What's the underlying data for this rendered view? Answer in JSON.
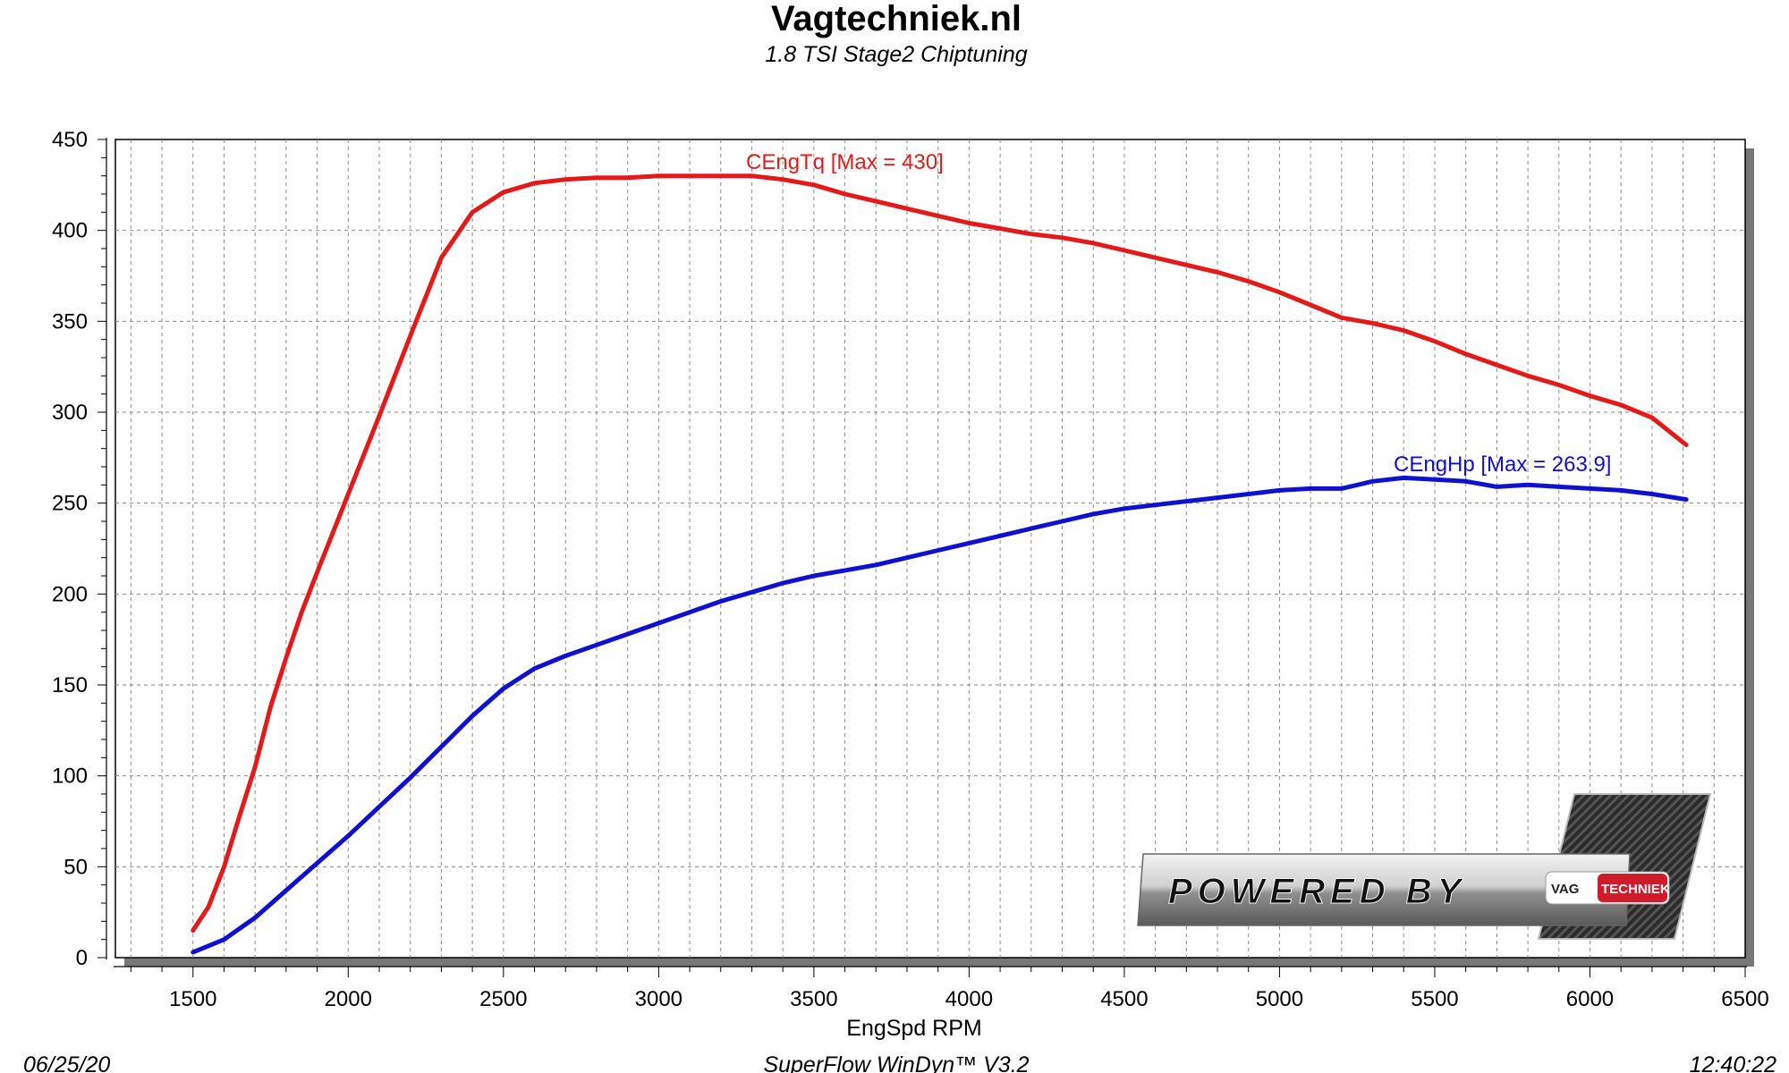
{
  "chart_data": {
    "type": "line",
    "title": "Vagtechniek.nl",
    "subtitle": "1.8 TSI Stage2 Chiptuning",
    "xlabel": "EngSpd RPM",
    "ylabel": "",
    "xlim": [
      1250,
      6500
    ],
    "ylim": [
      0,
      450
    ],
    "xticks": [
      1500,
      2000,
      2500,
      3000,
      3500,
      4000,
      4500,
      5000,
      5500,
      6000,
      6500
    ],
    "yticks": [
      0,
      50,
      100,
      150,
      200,
      250,
      300,
      350,
      400,
      450
    ],
    "grid": true,
    "colors": {
      "torque": "#e41a1a",
      "power": "#1010d0"
    },
    "series": [
      {
        "name": "CEngTq",
        "label": "CEngTq [Max = 430]",
        "color": "#e41a1a",
        "x": [
          1500,
          1550,
          1600,
          1650,
          1700,
          1750,
          1800,
          1850,
          1900,
          2000,
          2100,
          2200,
          2300,
          2400,
          2500,
          2600,
          2700,
          2800,
          2900,
          3000,
          3100,
          3200,
          3300,
          3400,
          3500,
          3600,
          3700,
          3800,
          3900,
          4000,
          4100,
          4200,
          4300,
          4400,
          4500,
          4600,
          4700,
          4800,
          4900,
          5000,
          5100,
          5200,
          5300,
          5400,
          5500,
          5600,
          5700,
          5800,
          5900,
          6000,
          6100,
          6200,
          6310
        ],
        "y": [
          15,
          28,
          50,
          78,
          105,
          138,
          165,
          190,
          212,
          255,
          298,
          342,
          385,
          410,
          421,
          426,
          428,
          429,
          429,
          430,
          430,
          430,
          430,
          428,
          425,
          420,
          416,
          412,
          408,
          404,
          401,
          398,
          396,
          393,
          389,
          385,
          381,
          377,
          372,
          366,
          359,
          352,
          349,
          345,
          339,
          332,
          326,
          320,
          315,
          309,
          304,
          297,
          282
        ]
      },
      {
        "name": "CEngHp",
        "label": "CEngHp [Max = 263.9]",
        "color": "#1010d0",
        "x": [
          1500,
          1600,
          1700,
          1800,
          1900,
          2000,
          2100,
          2200,
          2300,
          2400,
          2500,
          2600,
          2700,
          2800,
          2900,
          3000,
          3100,
          3200,
          3300,
          3400,
          3500,
          3600,
          3700,
          3800,
          3900,
          4000,
          4100,
          4200,
          4300,
          4400,
          4500,
          4600,
          4700,
          4800,
          4900,
          5000,
          5100,
          5200,
          5300,
          5400,
          5500,
          5600,
          5700,
          5800,
          5900,
          6000,
          6100,
          6200,
          6310
        ],
        "y": [
          3,
          10,
          22,
          37,
          52,
          67,
          83,
          99,
          116,
          133,
          148,
          159,
          166,
          172,
          178,
          184,
          190,
          196,
          201,
          206,
          210,
          213,
          216,
          220,
          224,
          228,
          232,
          236,
          240,
          244,
          247,
          249,
          251,
          253,
          255,
          257,
          258,
          258,
          262,
          263.9,
          263,
          262,
          259,
          260,
          259,
          258,
          257,
          255,
          252
        ]
      }
    ]
  },
  "footer": {
    "date": "06/25/20",
    "software": "SuperFlow WinDyn™  V3.2",
    "time": "12:40:22"
  },
  "logo": {
    "text": "POWERED BY",
    "badge_left": "VAG",
    "badge_right": "TECHNIEK"
  }
}
